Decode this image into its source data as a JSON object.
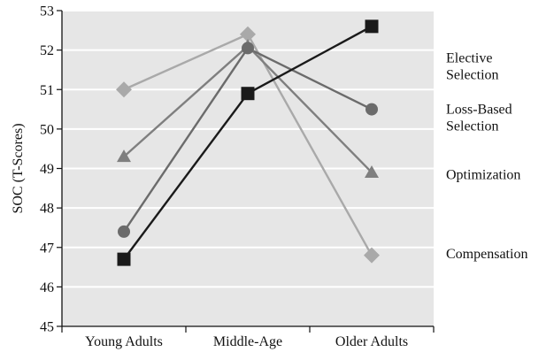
{
  "chart_data": {
    "type": "line",
    "title": "",
    "xlabel": "",
    "ylabel": "SOC (T-Scores)",
    "categories": [
      "Young Adults",
      "Middle-Age",
      "Older Adults"
    ],
    "ylim": [
      45,
      53
    ],
    "yticks": [
      45,
      46,
      47,
      48,
      49,
      50,
      51,
      52,
      53
    ],
    "grid": "horizontal",
    "background": "#e6e6e6",
    "legend_placement": "right",
    "series": [
      {
        "name": "Compensation",
        "label_lines": [
          "Compensation"
        ],
        "values": [
          51.0,
          52.4,
          46.8
        ],
        "color": "#a9a9a9",
        "marker": "diamond"
      },
      {
        "name": "Optimization",
        "label_lines": [
          "Optimization"
        ],
        "values": [
          49.3,
          52.1,
          48.9
        ],
        "color": "#7f7f7f",
        "marker": "triangle"
      },
      {
        "name": "Loss-Based Selection",
        "label_lines": [
          "Loss-Based",
          "Selection"
        ],
        "values": [
          47.4,
          52.05,
          50.5
        ],
        "color": "#6b6b6b",
        "marker": "circle"
      },
      {
        "name": "Elective Selection",
        "label_lines": [
          "Elective",
          "Selection"
        ],
        "values": [
          46.7,
          50.9,
          52.6
        ],
        "color": "#1a1a1a",
        "marker": "square"
      }
    ]
  }
}
